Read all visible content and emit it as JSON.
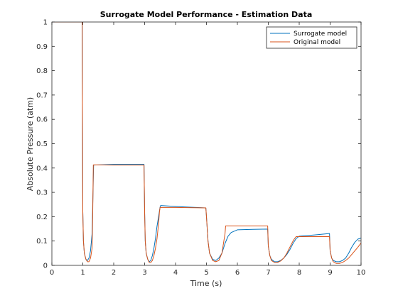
{
  "chart_data": {
    "type": "line",
    "title": "Surrogate Model Performance - Estimation Data",
    "xlabel": "Time (s)",
    "ylabel": "Absolute Pressure (atm)",
    "xlim": [
      0,
      10
    ],
    "ylim": [
      0,
      1
    ],
    "xticks": [
      "0",
      "1",
      "2",
      "3",
      "4",
      "5",
      "6",
      "7",
      "8",
      "9",
      "10"
    ],
    "yticks": [
      "0",
      "0.1",
      "0.2",
      "0.3",
      "0.4",
      "0.5",
      "0.6",
      "0.7",
      "0.8",
      "0.9",
      "1"
    ],
    "grid": false,
    "legend_position": "top-right",
    "series": [
      {
        "name": "Surrogate model",
        "color": "#0072BD",
        "x": [
          0,
          0.98,
          1.0,
          1.02,
          1.05,
          1.1,
          1.15,
          1.2,
          1.25,
          1.3,
          1.33,
          1.35,
          2.0,
          2.98,
          3.0,
          3.02,
          3.05,
          3.1,
          3.15,
          3.2,
          3.25,
          3.3,
          3.35,
          3.4,
          3.45,
          3.5,
          3.52,
          4.0,
          4.98,
          5.0,
          5.05,
          5.1,
          5.2,
          5.3,
          5.4,
          5.5,
          5.6,
          5.7,
          5.8,
          6.0,
          6.5,
          6.98,
          7.0,
          7.05,
          7.1,
          7.2,
          7.3,
          7.4,
          7.5,
          7.6,
          7.7,
          7.8,
          7.9,
          8.0,
          8.5,
          8.98,
          9.0,
          9.05,
          9.1,
          9.2,
          9.3,
          9.4,
          9.5,
          9.6,
          9.7,
          9.8,
          9.9,
          10.0
        ],
        "y": [
          1,
          1,
          0.22,
          0.1,
          0.05,
          0.025,
          0.02,
          0.03,
          0.06,
          0.13,
          0.3,
          0.412,
          0.415,
          0.415,
          0.22,
          0.1,
          0.05,
          0.025,
          0.015,
          0.02,
          0.04,
          0.07,
          0.11,
          0.16,
          0.2,
          0.24,
          0.246,
          0.242,
          0.236,
          0.2,
          0.1,
          0.05,
          0.025,
          0.02,
          0.03,
          0.05,
          0.09,
          0.12,
          0.135,
          0.146,
          0.148,
          0.149,
          0.08,
          0.04,
          0.025,
          0.015,
          0.015,
          0.02,
          0.03,
          0.045,
          0.065,
          0.09,
          0.11,
          0.12,
          0.125,
          0.131,
          0.06,
          0.03,
          0.02,
          0.015,
          0.015,
          0.02,
          0.03,
          0.05,
          0.075,
          0.095,
          0.108,
          0.112
        ]
      },
      {
        "name": "Original model",
        "color": "#D95319",
        "x": [
          0,
          0.98,
          1.0,
          1.02,
          1.05,
          1.1,
          1.15,
          1.2,
          1.25,
          1.3,
          1.32,
          1.34,
          2.0,
          2.98,
          3.0,
          3.02,
          3.05,
          3.1,
          3.15,
          3.2,
          3.25,
          3.3,
          3.35,
          3.4,
          3.45,
          3.48,
          3.5,
          4.0,
          4.98,
          5.0,
          5.05,
          5.1,
          5.2,
          5.3,
          5.4,
          5.5,
          5.55,
          5.6,
          5.62,
          6.0,
          6.5,
          6.98,
          7.0,
          7.05,
          7.1,
          7.2,
          7.3,
          7.4,
          7.5,
          7.6,
          7.7,
          7.8,
          7.85,
          7.9,
          8.5,
          8.98,
          9.0,
          9.05,
          9.1,
          9.2,
          9.3,
          9.4,
          9.5,
          9.6,
          9.7,
          9.8,
          9.9,
          10.0
        ],
        "y": [
          1,
          1,
          0.22,
          0.1,
          0.05,
          0.025,
          0.015,
          0.015,
          0.03,
          0.07,
          0.2,
          0.413,
          0.412,
          0.412,
          0.22,
          0.1,
          0.05,
          0.025,
          0.012,
          0.012,
          0.02,
          0.04,
          0.07,
          0.11,
          0.17,
          0.22,
          0.238,
          0.238,
          0.236,
          0.2,
          0.1,
          0.05,
          0.02,
          0.015,
          0.02,
          0.05,
          0.09,
          0.13,
          0.162,
          0.162,
          0.162,
          0.162,
          0.08,
          0.04,
          0.02,
          0.012,
          0.012,
          0.018,
          0.03,
          0.05,
          0.075,
          0.1,
          0.11,
          0.118,
          0.118,
          0.118,
          0.06,
          0.03,
          0.015,
          0.008,
          0.008,
          0.012,
          0.02,
          0.03,
          0.045,
          0.06,
          0.075,
          0.092
        ]
      }
    ]
  }
}
